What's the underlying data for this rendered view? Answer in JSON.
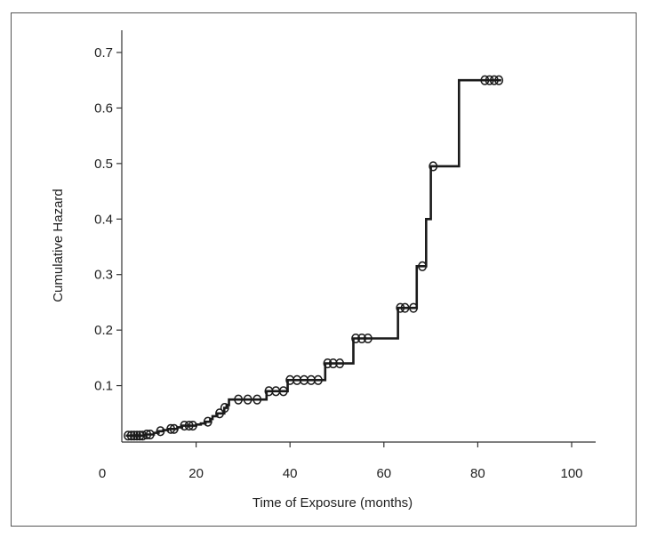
{
  "chart_data": {
    "type": "line",
    "step": true,
    "title": "",
    "xlabel": "Time of Exposure (months)",
    "ylabel": "Cumulative Hazard",
    "xlim": [
      0,
      105
    ],
    "ylim": [
      0,
      0.72
    ],
    "xticks": [
      0,
      20,
      40,
      60,
      80,
      100
    ],
    "xtick_labels": [
      "0",
      "20",
      "40",
      "60",
      "80",
      "100"
    ],
    "yticks": [
      0.1,
      0.2,
      0.3,
      0.4,
      0.5,
      0.6,
      0.7
    ],
    "ytick_labels": [
      "0.1",
      "0.2",
      "0.3",
      "0.4",
      "0.5",
      "0.6",
      "0.7"
    ],
    "grid": false,
    "line_color": "#1a1a1a",
    "series": [
      {
        "steps": [
          {
            "x": 5,
            "y": 0.01
          },
          {
            "x": 9,
            "y": 0.012
          },
          {
            "x": 11,
            "y": 0.015
          },
          {
            "x": 12,
            "y": 0.018
          },
          {
            "x": 13,
            "y": 0.02
          },
          {
            "x": 14,
            "y": 0.022
          },
          {
            "x": 16,
            "y": 0.025
          },
          {
            "x": 17,
            "y": 0.028
          },
          {
            "x": 20,
            "y": 0.03
          },
          {
            "x": 21,
            "y": 0.032
          },
          {
            "x": 22,
            "y": 0.035
          },
          {
            "x": 23,
            "y": 0.04
          },
          {
            "x": 23.5,
            "y": 0.045
          },
          {
            "x": 24.5,
            "y": 0.05
          },
          {
            "x": 26,
            "y": 0.06
          },
          {
            "x": 26.5,
            "y": 0.065
          },
          {
            "x": 27,
            "y": 0.075
          },
          {
            "x": 35,
            "y": 0.09
          },
          {
            "x": 39.5,
            "y": 0.11
          },
          {
            "x": 47.5,
            "y": 0.14
          },
          {
            "x": 53.5,
            "y": 0.185
          },
          {
            "x": 63,
            "y": 0.24
          },
          {
            "x": 67,
            "y": 0.315
          },
          {
            "x": 69,
            "y": 0.4
          },
          {
            "x": 70,
            "y": 0.495
          },
          {
            "x": 76,
            "y": 0.65
          },
          {
            "x": 85,
            "y": 0.65
          }
        ],
        "censored": [
          {
            "x": 5.5,
            "y": 0.01
          },
          {
            "x": 6.2,
            "y": 0.01
          },
          {
            "x": 6.8,
            "y": 0.01
          },
          {
            "x": 7.4,
            "y": 0.01
          },
          {
            "x": 8,
            "y": 0.01
          },
          {
            "x": 8.6,
            "y": 0.01
          },
          {
            "x": 9.5,
            "y": 0.012
          },
          {
            "x": 10.2,
            "y": 0.012
          },
          {
            "x": 12.4,
            "y": 0.018
          },
          {
            "x": 14.6,
            "y": 0.022
          },
          {
            "x": 15.3,
            "y": 0.022
          },
          {
            "x": 17.5,
            "y": 0.028
          },
          {
            "x": 18.5,
            "y": 0.028
          },
          {
            "x": 19.3,
            "y": 0.028
          },
          {
            "x": 22.5,
            "y": 0.035
          },
          {
            "x": 25,
            "y": 0.05
          },
          {
            "x": 26.1,
            "y": 0.06
          },
          {
            "x": 29,
            "y": 0.075
          },
          {
            "x": 31,
            "y": 0.075
          },
          {
            "x": 33,
            "y": 0.075
          },
          {
            "x": 35.5,
            "y": 0.09
          },
          {
            "x": 37,
            "y": 0.09
          },
          {
            "x": 38.6,
            "y": 0.09
          },
          {
            "x": 40,
            "y": 0.11
          },
          {
            "x": 41.5,
            "y": 0.11
          },
          {
            "x": 43,
            "y": 0.11
          },
          {
            "x": 44.5,
            "y": 0.11
          },
          {
            "x": 46,
            "y": 0.11
          },
          {
            "x": 48,
            "y": 0.14
          },
          {
            "x": 49.2,
            "y": 0.14
          },
          {
            "x": 50.6,
            "y": 0.14
          },
          {
            "x": 54,
            "y": 0.185
          },
          {
            "x": 55.3,
            "y": 0.185
          },
          {
            "x": 56.6,
            "y": 0.185
          },
          {
            "x": 63.5,
            "y": 0.24
          },
          {
            "x": 64.5,
            "y": 0.24
          },
          {
            "x": 66.3,
            "y": 0.24
          },
          {
            "x": 68.2,
            "y": 0.315
          },
          {
            "x": 70.5,
            "y": 0.495
          },
          {
            "x": 81.5,
            "y": 0.65
          },
          {
            "x": 82.5,
            "y": 0.65
          },
          {
            "x": 83.5,
            "y": 0.65
          },
          {
            "x": 84.5,
            "y": 0.65
          }
        ]
      }
    ]
  }
}
